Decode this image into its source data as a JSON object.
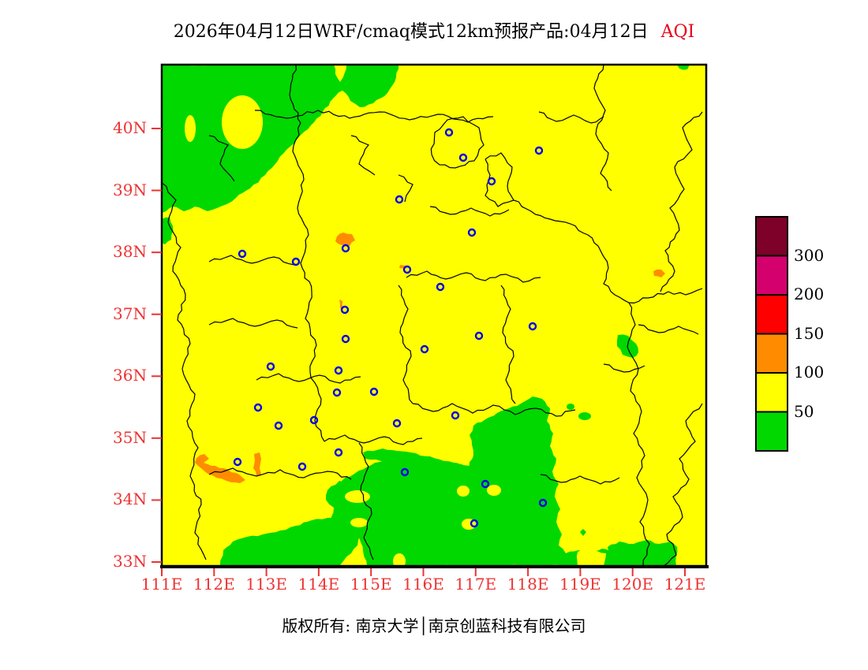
{
  "title": {
    "text": "2026年04月12日WRF/cmaq模式12km预报产品:04月12日",
    "badge": "AQI"
  },
  "axes": {
    "lat_labels": [
      "40N",
      "39N",
      "38N",
      "37N",
      "36N",
      "35N",
      "34N",
      "33N"
    ],
    "lon_labels": [
      "111E",
      "112E",
      "113E",
      "114E",
      "115E",
      "116E",
      "117E",
      "118E",
      "119E",
      "120E",
      "121E"
    ]
  },
  "legend": {
    "scale_labels": [
      "300",
      "200",
      "150",
      "100",
      "50"
    ],
    "band_colors": [
      "#7d0128",
      "#d4006e",
      "#ff0000",
      "#ff8c00",
      "#ffff00",
      "#00d800"
    ],
    "band_names": [
      "hazardous",
      "very-unhealthy",
      "unhealthy",
      "moderate-high",
      "moderate",
      "good"
    ]
  },
  "footer": {
    "copyright": "版权所有: 南京大学│南京创蓝科技有限公司"
  },
  "colors": {
    "background": "#ffffff",
    "map_fill": "#ffff00",
    "good_region": "#00d800",
    "orange_spot": "#ff8c00",
    "city_marker": "#0000ee",
    "axis_label": "#ee3333",
    "boundary": "#000000",
    "frame": "#000000"
  }
}
